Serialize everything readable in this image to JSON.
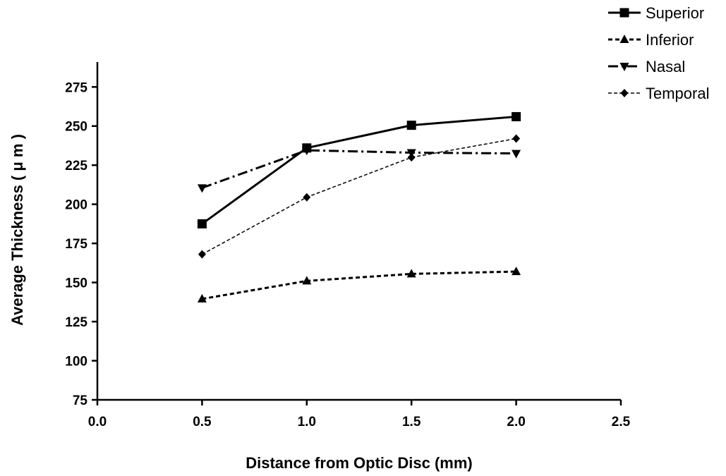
{
  "chart_data": {
    "type": "line",
    "title": "",
    "xlabel": "Distance from Optic Disc (mm)",
    "ylabel": "Average Thickness ( μ m )",
    "xlim": [
      0.0,
      2.5
    ],
    "ylim": [
      75,
      290
    ],
    "xticks": [
      "0.0",
      "0.5",
      "1.0",
      "1.5",
      "2.0",
      "2.5"
    ],
    "yticks": [
      "75",
      "100",
      "125",
      "150",
      "175",
      "200",
      "225",
      "250",
      "275"
    ],
    "x": [
      0.5,
      1.0,
      1.5,
      2.0
    ],
    "grid": false,
    "legend_position": "top-right",
    "series": [
      {
        "name": "Superior",
        "values": [
          187.5,
          236,
          250.5,
          256
        ],
        "marker": "square",
        "dash": "solid",
        "width": 3
      },
      {
        "name": "Inferior",
        "values": [
          139.5,
          151,
          155.5,
          157
        ],
        "marker": "triangle-up",
        "dash": "short-dash",
        "width": 3
      },
      {
        "name": "Nasal",
        "values": [
          210.5,
          234.5,
          233,
          232.5
        ],
        "marker": "triangle-down",
        "dash": "dash-dot",
        "width": 3
      },
      {
        "name": "Temporal",
        "values": [
          168,
          204.5,
          230,
          242
        ],
        "marker": "diamond",
        "dash": "fine-dash",
        "width": 1.5
      }
    ]
  }
}
